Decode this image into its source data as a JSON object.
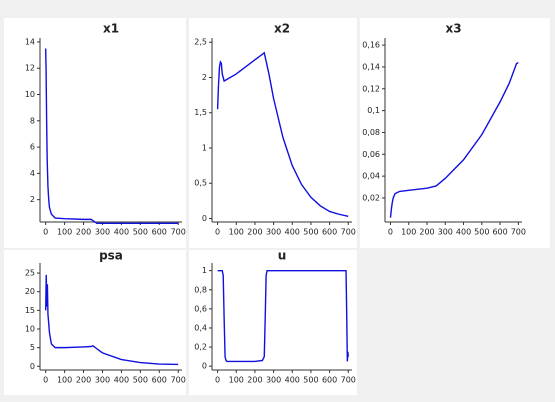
{
  "chart_data": [
    {
      "type": "line",
      "title": "x1",
      "color": "#1010e0",
      "x": [
        0,
        2,
        5,
        8,
        12,
        16,
        20,
        30,
        50,
        100,
        200,
        240,
        255,
        270,
        300,
        400,
        700
      ],
      "values": [
        13.5,
        12,
        8,
        5,
        3,
        2,
        1.4,
        0.9,
        0.6,
        0.55,
        0.5,
        0.5,
        0.35,
        0.2,
        0.2,
        0.2,
        0.2
      ],
      "xlim": [
        -30,
        720
      ],
      "ylim": [
        0.3,
        14.3
      ],
      "xticks": [
        0,
        100,
        200,
        300,
        400,
        500,
        600,
        700
      ],
      "yticks": [
        2,
        4,
        6,
        8,
        10,
        12,
        14
      ]
    },
    {
      "type": "line",
      "title": "x2",
      "color": "#1010e0",
      "x": [
        0,
        5,
        10,
        15,
        20,
        25,
        35,
        100,
        200,
        250,
        275,
        300,
        350,
        400,
        450,
        500,
        550,
        600,
        650,
        700
      ],
      "values": [
        1.55,
        1.9,
        2.15,
        2.22,
        2.2,
        2.05,
        1.95,
        2.05,
        2.25,
        2.35,
        2.05,
        1.7,
        1.15,
        0.75,
        0.48,
        0.3,
        0.18,
        0.1,
        0.06,
        0.03
      ],
      "xlim": [
        -30,
        720
      ],
      "ylim": [
        -0.05,
        2.56
      ],
      "xticks": [
        0,
        100,
        200,
        300,
        400,
        500,
        600,
        700
      ],
      "yticks": [
        0,
        {
          "value": 0.5,
          "label": "0,5"
        },
        1,
        {
          "value": 1.5,
          "label": "1,5"
        },
        2,
        {
          "value": 2.5,
          "label": "2,5"
        }
      ]
    },
    {
      "type": "line",
      "title": "x3",
      "color": "#1010e0",
      "x": [
        0,
        5,
        10,
        15,
        25,
        50,
        100,
        200,
        250,
        300,
        400,
        500,
        600,
        650,
        690,
        700
      ],
      "values": [
        0.002,
        0.01,
        0.016,
        0.02,
        0.024,
        0.026,
        0.027,
        0.029,
        0.031,
        0.038,
        0.055,
        0.078,
        0.108,
        0.125,
        0.143,
        0.144
      ],
      "xlim": [
        -30,
        720
      ],
      "ylim": [
        -0.002,
        0.1665
      ],
      "xticks": [
        0,
        100,
        200,
        300,
        400,
        500,
        600,
        700
      ],
      "yticks": [
        {
          "value": 0.02,
          "label": "0,02"
        },
        {
          "value": 0.04,
          "label": "0,04"
        },
        {
          "value": 0.06,
          "label": "0,06"
        },
        {
          "value": 0.08,
          "label": "0,08"
        },
        {
          "value": 0.1,
          "label": "0,1"
        },
        {
          "value": 0.12,
          "label": "0,12"
        },
        {
          "value": 0.14,
          "label": "0,14"
        },
        {
          "value": 0.16,
          "label": "0,16"
        }
      ]
    },
    {
      "type": "line",
      "title": "psa",
      "color": "#1010e0",
      "x": [
        0,
        3,
        6,
        9,
        12,
        20,
        30,
        50,
        100,
        200,
        240,
        250,
        275,
        300,
        400,
        500,
        600,
        700
      ],
      "values": [
        15,
        24.5,
        16,
        22,
        14,
        9,
        6,
        5,
        5,
        5.2,
        5.3,
        5.5,
        4.5,
        3.6,
        1.8,
        1,
        0.6,
        0.5
      ],
      "xlim": [
        -30,
        720
      ],
      "ylim": [
        -1,
        27.7
      ],
      "xticks": [
        0,
        100,
        200,
        300,
        400,
        500,
        600,
        700
      ],
      "yticks": [
        0,
        5,
        10,
        15,
        20,
        25
      ]
    },
    {
      "type": "line",
      "title": "u",
      "color": "#1010e0",
      "x": [
        0,
        25,
        30,
        35,
        40,
        45,
        50,
        100,
        200,
        240,
        250,
        255,
        260,
        265,
        300,
        500,
        688,
        692,
        695,
        698,
        700
      ],
      "values": [
        1,
        1,
        0.95,
        0.5,
        0.1,
        0.06,
        0.05,
        0.05,
        0.05,
        0.06,
        0.1,
        0.5,
        0.95,
        1,
        1,
        1,
        1,
        0.5,
        0.05,
        0.15,
        0.1
      ],
      "xlim": [
        -30,
        720
      ],
      "ylim": [
        -0.04,
        1.08
      ],
      "xticks": [
        0,
        100,
        200,
        300,
        400,
        500,
        600,
        700
      ],
      "yticks": [
        0,
        {
          "value": 0.2,
          "label": "0,2"
        },
        {
          "value": 0.4,
          "label": "0,4"
        },
        {
          "value": 0.6,
          "label": "0,6"
        },
        {
          "value": 0.8,
          "label": "0,8"
        },
        1
      ]
    }
  ]
}
